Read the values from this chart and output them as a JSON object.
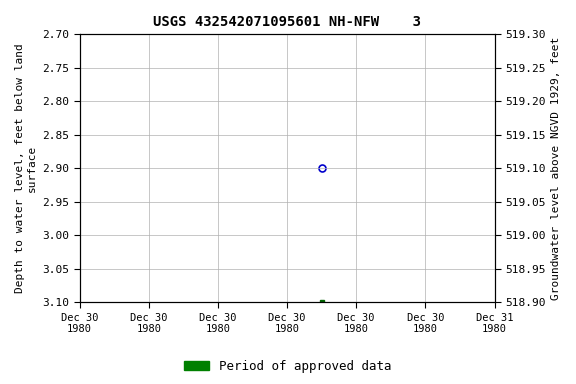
{
  "title": "USGS 432542071095601 NH-NFW    3",
  "left_ylabel": "Depth to water level, feet below land\nsurface",
  "right_ylabel": "Groundwater level above NGVD 1929, feet",
  "ylim_left_top": 2.7,
  "ylim_left_bottom": 3.1,
  "ylim_right_top": 519.3,
  "ylim_right_bottom": 518.9,
  "left_yticks": [
    2.7,
    2.75,
    2.8,
    2.85,
    2.9,
    2.95,
    3.0,
    3.05,
    3.1
  ],
  "right_yticks": [
    519.3,
    519.25,
    519.2,
    519.15,
    519.1,
    519.05,
    519.0,
    518.95,
    518.9
  ],
  "right_ytick_labels": [
    "519.30",
    "519.25",
    "519.20",
    "519.15",
    "519.10",
    "519.05",
    "519.00",
    "518.95",
    "518.90"
  ],
  "xtick_labels": [
    "Dec 30\n1980",
    "Dec 30\n1980",
    "Dec 30\n1980",
    "Dec 30\n1980",
    "Dec 30\n1980",
    "Dec 30\n1980",
    "Dec 31\n1980"
  ],
  "point_blue_x": 3.5,
  "point_blue_y": 2.9,
  "point_green_x": 3.5,
  "point_green_y": 3.1,
  "xlim": [
    0,
    6
  ],
  "xtick_positions": [
    0,
    1,
    2,
    3,
    4,
    5,
    6
  ],
  "legend_label": "Period of approved data",
  "legend_color": "#008000",
  "blue_color": "#0000cc",
  "green_dot_color": "#006400",
  "background_color": "#ffffff",
  "grid_color": "#b0b0b0"
}
